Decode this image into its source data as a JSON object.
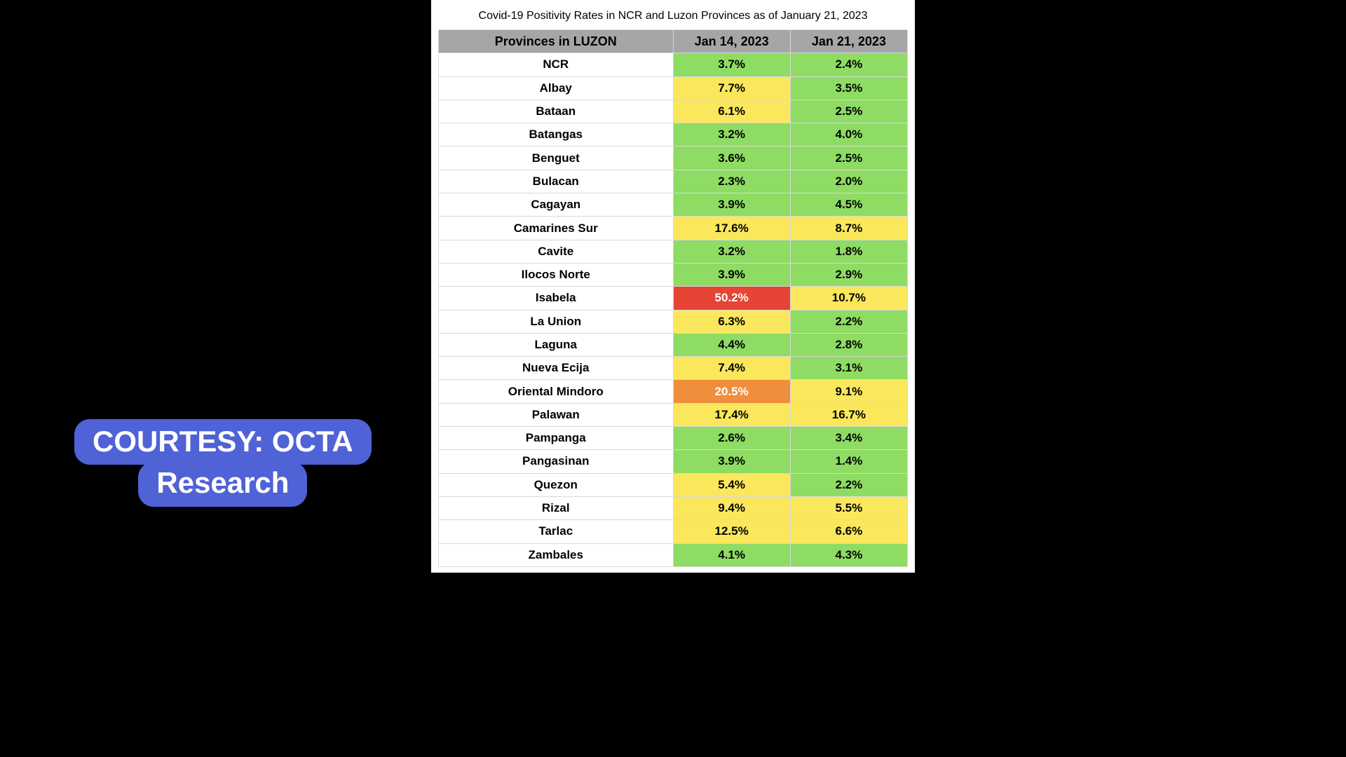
{
  "title": "Covid-19 Positivity Rates in NCR and Luzon Provinces as of January 21, 2023",
  "columns": [
    "Provinces in LUZON",
    "Jan 14, 2023",
    "Jan 21, 2023"
  ],
  "color_map": {
    "green": "#8edc63",
    "yellow": "#fae75c",
    "orange": "#ef8e3c",
    "red": "#e64434",
    "header": "#a6a6a6",
    "row_bg": "#ffffff",
    "border": "#d9d9d9"
  },
  "rows": [
    {
      "province": "NCR",
      "jan14": "3.7%",
      "jan14_color": "green",
      "jan21": "2.4%",
      "jan21_color": "green"
    },
    {
      "province": "Albay",
      "jan14": "7.7%",
      "jan14_color": "yellow",
      "jan21": "3.5%",
      "jan21_color": "green"
    },
    {
      "province": "Bataan",
      "jan14": "6.1%",
      "jan14_color": "yellow",
      "jan21": "2.5%",
      "jan21_color": "green"
    },
    {
      "province": "Batangas",
      "jan14": "3.2%",
      "jan14_color": "green",
      "jan21": "4.0%",
      "jan21_color": "green"
    },
    {
      "province": "Benguet",
      "jan14": "3.6%",
      "jan14_color": "green",
      "jan21": "2.5%",
      "jan21_color": "green"
    },
    {
      "province": "Bulacan",
      "jan14": "2.3%",
      "jan14_color": "green",
      "jan21": "2.0%",
      "jan21_color": "green"
    },
    {
      "province": "Cagayan",
      "jan14": "3.9%",
      "jan14_color": "green",
      "jan21": "4.5%",
      "jan21_color": "green"
    },
    {
      "province": "Camarines Sur",
      "jan14": "17.6%",
      "jan14_color": "yellow",
      "jan21": "8.7%",
      "jan21_color": "yellow"
    },
    {
      "province": "Cavite",
      "jan14": "3.2%",
      "jan14_color": "green",
      "jan21": "1.8%",
      "jan21_color": "green"
    },
    {
      "province": "Ilocos Norte",
      "jan14": "3.9%",
      "jan14_color": "green",
      "jan21": "2.9%",
      "jan21_color": "green"
    },
    {
      "province": "Isabela",
      "jan14": "50.2%",
      "jan14_color": "red",
      "jan21": "10.7%",
      "jan21_color": "yellow"
    },
    {
      "province": "La Union",
      "jan14": "6.3%",
      "jan14_color": "yellow",
      "jan21": "2.2%",
      "jan21_color": "green"
    },
    {
      "province": "Laguna",
      "jan14": "4.4%",
      "jan14_color": "green",
      "jan21": "2.8%",
      "jan21_color": "green"
    },
    {
      "province": "Nueva Ecija",
      "jan14": "7.4%",
      "jan14_color": "yellow",
      "jan21": "3.1%",
      "jan21_color": "green"
    },
    {
      "province": "Oriental Mindoro",
      "jan14": "20.5%",
      "jan14_color": "orange",
      "jan21": "9.1%",
      "jan21_color": "yellow"
    },
    {
      "province": "Palawan",
      "jan14": "17.4%",
      "jan14_color": "yellow",
      "jan21": "16.7%",
      "jan21_color": "yellow"
    },
    {
      "province": "Pampanga",
      "jan14": "2.6%",
      "jan14_color": "green",
      "jan21": "3.4%",
      "jan21_color": "green"
    },
    {
      "province": "Pangasinan",
      "jan14": "3.9%",
      "jan14_color": "green",
      "jan21": "1.4%",
      "jan21_color": "green"
    },
    {
      "province": "Quezon",
      "jan14": "5.4%",
      "jan14_color": "yellow",
      "jan21": "2.2%",
      "jan21_color": "green"
    },
    {
      "province": "Rizal",
      "jan14": "9.4%",
      "jan14_color": "yellow",
      "jan21": "5.5%",
      "jan21_color": "yellow"
    },
    {
      "province": "Tarlac",
      "jan14": "12.5%",
      "jan14_color": "yellow",
      "jan21": "6.6%",
      "jan21_color": "yellow"
    },
    {
      "province": "Zambales",
      "jan14": "4.1%",
      "jan14_color": "green",
      "jan21": "4.3%",
      "jan21_color": "green"
    }
  ],
  "badge": {
    "line1": "COURTESY: OCTA",
    "line2": "Research",
    "bg": "#4f62d6",
    "text_color": "#ffffff",
    "fontsize": 42
  }
}
